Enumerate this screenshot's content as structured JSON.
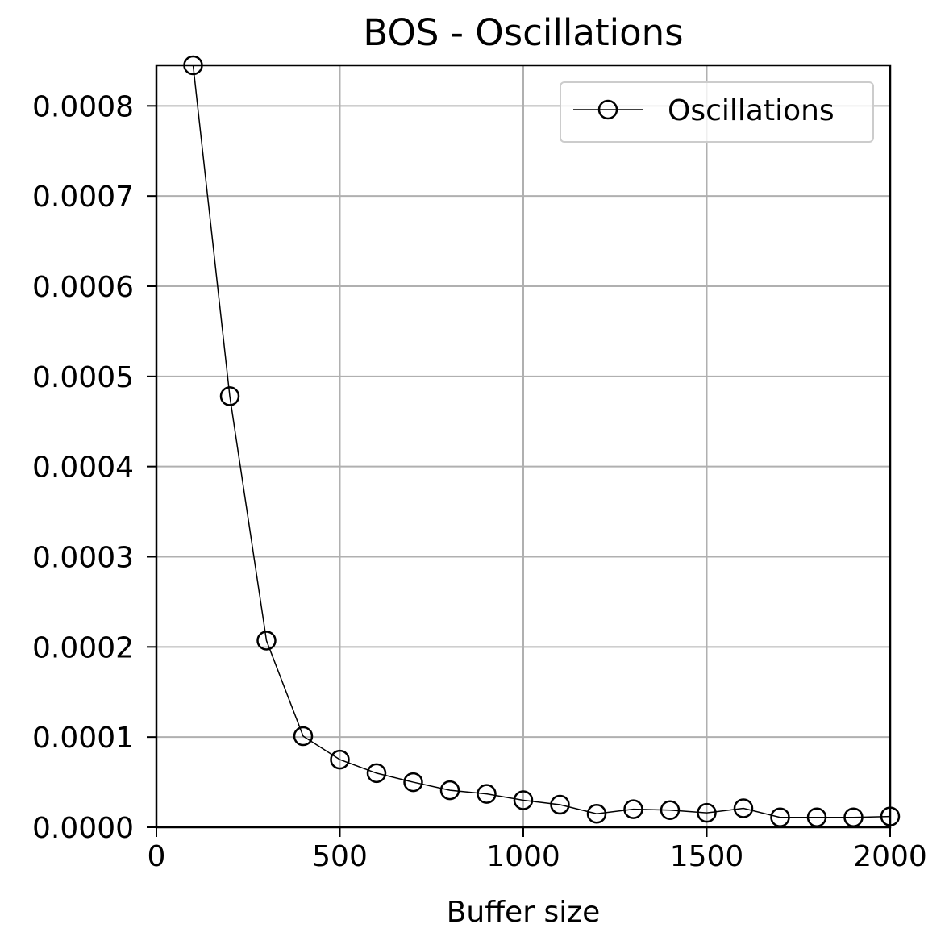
{
  "chart_data": {
    "type": "line",
    "title": "BOS - Oscillations",
    "xlabel": "Buffer size",
    "ylabel": "",
    "xlim": [
      0,
      2000
    ],
    "ylim": [
      0,
      0.000845
    ],
    "grid": true,
    "legend_position": "top-right",
    "x_ticks": [
      0,
      500,
      1000,
      1500,
      2000
    ],
    "x_tick_labels": [
      "0",
      "500",
      "1000",
      "1500",
      "2000"
    ],
    "y_ticks": [
      0,
      0.0001,
      0.0002,
      0.0003,
      0.0004,
      0.0005,
      0.0006,
      0.0007,
      0.0008
    ],
    "y_tick_labels": [
      "0.0000",
      "0.0001",
      "0.0002",
      "0.0003",
      "0.0004",
      "0.0005",
      "0.0006",
      "0.0007",
      "0.0008"
    ],
    "colors": {
      "line": "#000000",
      "grid": "#b0b0b0",
      "axes": "#000000",
      "legend_border": "#cccccc"
    },
    "series": [
      {
        "name": "Oscillations",
        "marker": "open-circle",
        "x": [
          100,
          200,
          300,
          400,
          500,
          600,
          700,
          800,
          900,
          1000,
          1100,
          1200,
          1300,
          1400,
          1500,
          1600,
          1700,
          1800,
          1900,
          2000
        ],
        "y": [
          0.000845,
          0.000478,
          0.000207,
          0.000101,
          7.5e-05,
          6e-05,
          5e-05,
          4.1e-05,
          3.7e-05,
          3e-05,
          2.5e-05,
          1.5e-05,
          2e-05,
          1.9e-05,
          1.6e-05,
          2.1e-05,
          1.1e-05,
          1.1e-05,
          1.1e-05,
          1.2e-05
        ]
      }
    ]
  }
}
